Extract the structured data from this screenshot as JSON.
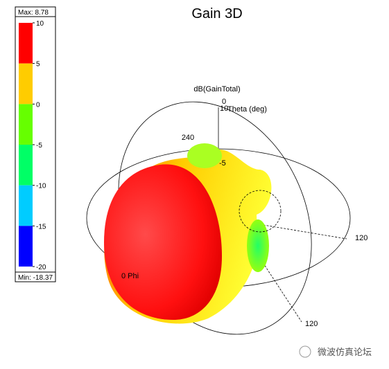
{
  "chart_data": {
    "type": "gain3d",
    "title": "Gain 3D",
    "colorbar": {
      "max_label": "Max: 8.78",
      "min_label": "Min: -18.37",
      "lim": [
        -20,
        10
      ],
      "ticks": [
        10,
        5,
        0,
        -5,
        -10,
        -15,
        -20
      ],
      "colors": [
        "#ff0000",
        "#ffcc00",
        "#66ff00",
        "#00ff66",
        "#00ccff",
        "#0000ff"
      ]
    },
    "annotations": [
      "dB(GainTotal)",
      "0",
      "10",
      "Theta (deg)",
      "240",
      "-5",
      "120",
      "120",
      "0 Phi",
      "微波仿真论坛"
    ]
  }
}
